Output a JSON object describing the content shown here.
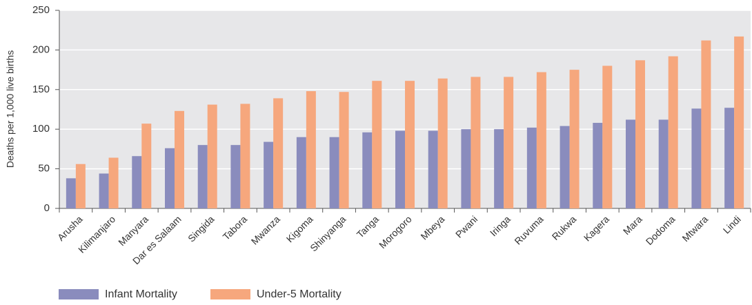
{
  "chart_data": {
    "type": "bar",
    "y_label": "Deaths per 1,000 live births",
    "categories": [
      "Arusha",
      "Kilimanjaro",
      "Manyara",
      "Dar es Salaam",
      "Singida",
      "Tabora",
      "Mwanza",
      "Kigoma",
      "Shinyanga",
      "Tanga",
      "Morogoro",
      "Mbeya",
      "Pwani",
      "Iringa",
      "Ruvuma",
      "Rukwa",
      "Kagera",
      "Mara",
      "Dodoma",
      "Mtwara",
      "Lindi"
    ],
    "series": [
      {
        "name": "Infant Mortality",
        "color": "#8a8cbd",
        "values": [
          38,
          44,
          66,
          76,
          80,
          80,
          84,
          90,
          90,
          96,
          98,
          98,
          100,
          100,
          102,
          104,
          108,
          112,
          112,
          126,
          127
        ]
      },
      {
        "name": "Under-5 Mortality",
        "color": "#f6a77d",
        "values": [
          56,
          64,
          107,
          123,
          131,
          132,
          139,
          148,
          147,
          161,
          161,
          164,
          166,
          166,
          172,
          175,
          180,
          187,
          192,
          212,
          217
        ]
      }
    ],
    "ylim": [
      0,
      250
    ],
    "yticks": [
      0,
      50,
      100,
      150,
      200,
      250
    ],
    "grid": true,
    "legend": "bottom"
  }
}
